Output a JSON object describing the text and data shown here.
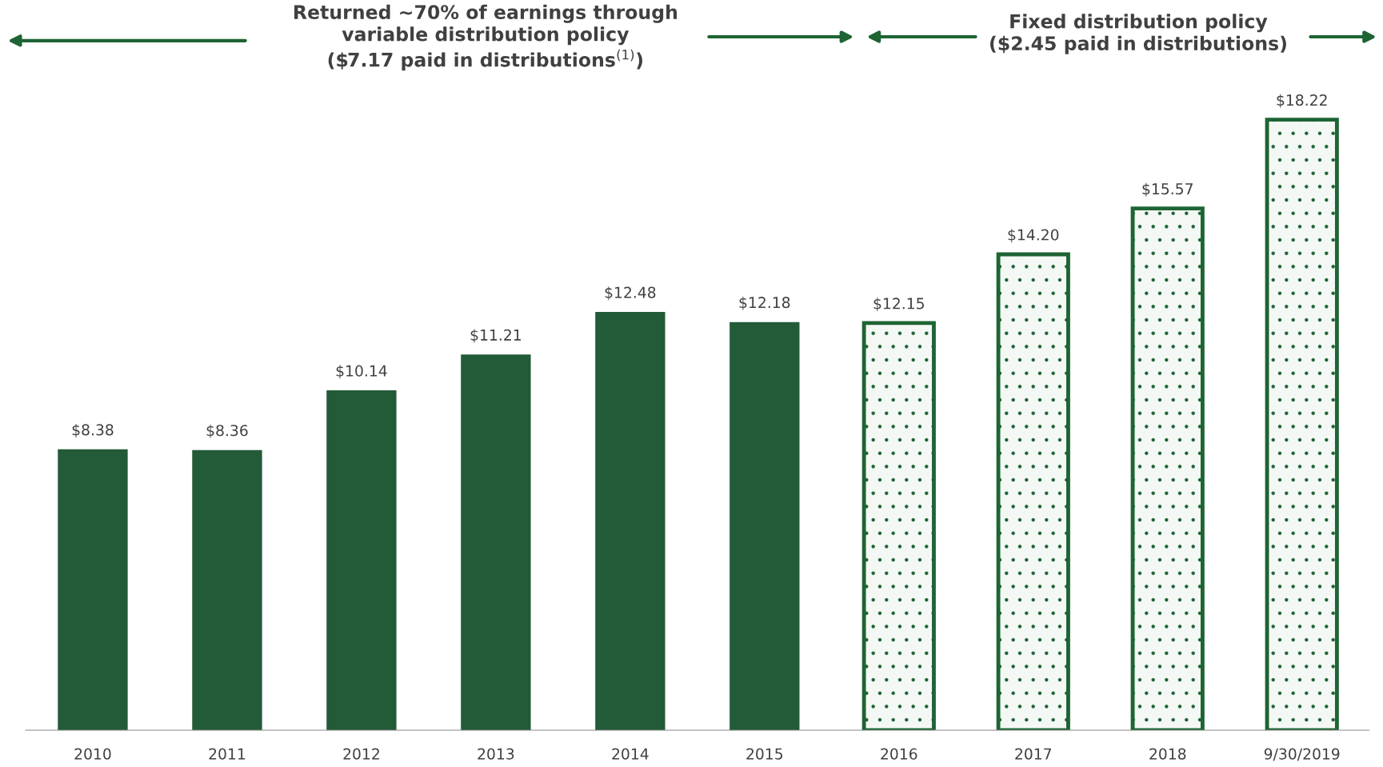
{
  "chart_data": {
    "type": "bar",
    "stacked": true,
    "categories": [
      "2010",
      "2011",
      "2012",
      "2013",
      "2014",
      "2015",
      "2016",
      "2017",
      "2018",
      "9/30/2019"
    ],
    "series": [
      {
        "color": "#235a38",
        "values": [
          8.38,
          8.36,
          10.14,
          11.21,
          12.48,
          12.18,
          null,
          null,
          null,
          null
        ],
        "value_labels": [
          "$8.38",
          "$8.36",
          "$10.14",
          "$11.21",
          "$12.48",
          "$12.18",
          null,
          null,
          null,
          null
        ]
      },
      {
        "color": "#1e6434",
        "values": [
          null,
          null,
          null,
          null,
          null,
          null,
          12.15,
          14.2,
          15.57,
          18.22
        ],
        "value_labels": [
          null,
          null,
          null,
          null,
          null,
          null,
          "$12.15",
          "$14.20",
          "$15.57",
          "$18.22"
        ]
      }
    ],
    "annotations": [
      "Returned ~70% of earnings through\nvariable distribution policy\n($7.17 paid in distributions$^{(1)}$)",
      "Fixed distribution policy\n($2.45 paid in distributions)"
    ]
  }
}
